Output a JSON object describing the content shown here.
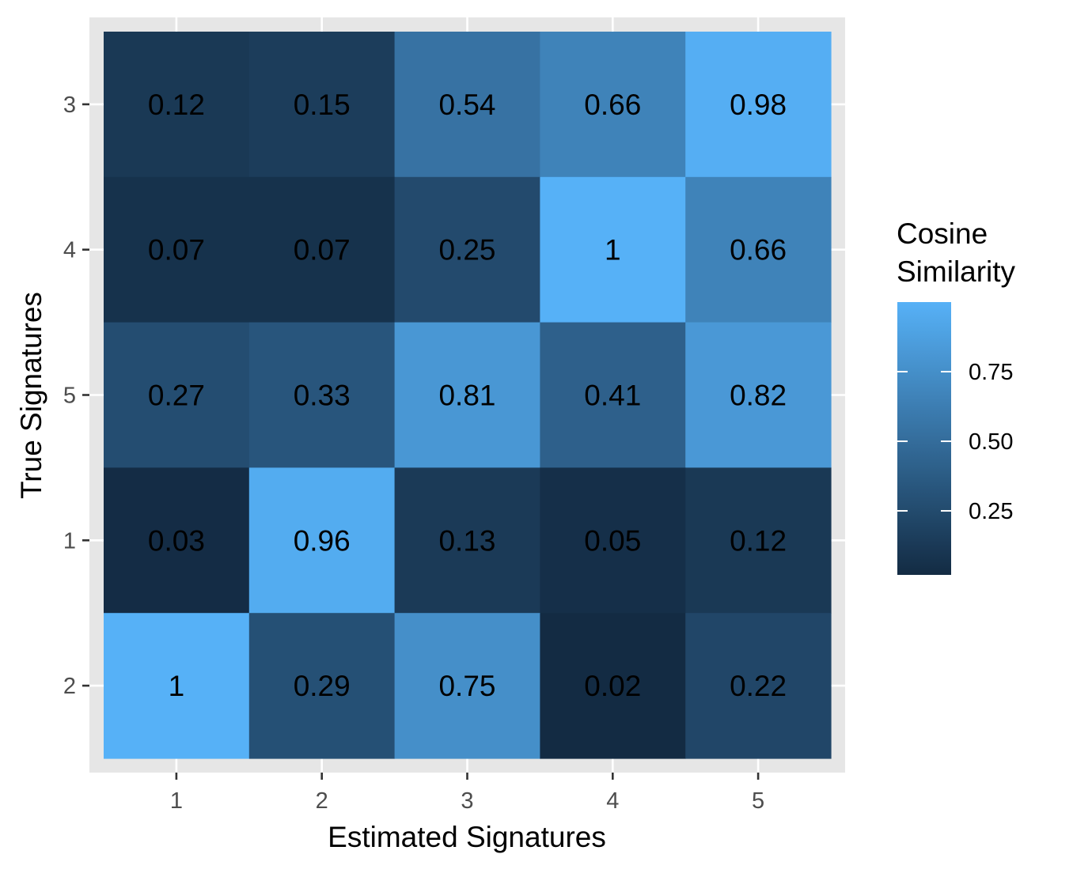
{
  "chart_data": {
    "type": "heatmap",
    "title": "",
    "xlabel": "Estimated Signatures",
    "ylabel": "True Signatures",
    "x_categories": [
      "1",
      "2",
      "3",
      "4",
      "5"
    ],
    "y_categories": [
      "3",
      "4",
      "5",
      "1",
      "2"
    ],
    "values": [
      [
        0.12,
        0.15,
        0.54,
        0.66,
        0.98
      ],
      [
        0.07,
        0.07,
        0.25,
        1,
        0.66
      ],
      [
        0.27,
        0.33,
        0.81,
        0.41,
        0.82
      ],
      [
        0.03,
        0.96,
        0.13,
        0.05,
        0.12
      ],
      [
        1,
        0.29,
        0.75,
        0.02,
        0.22
      ]
    ],
    "cell_labels": [
      [
        "0.12",
        "0.15",
        "0.54",
        "0.66",
        "0.98"
      ],
      [
        "0.07",
        "0.07",
        "0.25",
        "1",
        "0.66"
      ],
      [
        "0.27",
        "0.33",
        "0.81",
        "0.41",
        "0.82"
      ],
      [
        "0.03",
        "0.96",
        "0.13",
        "0.05",
        "0.12"
      ],
      [
        "1",
        "0.29",
        "0.75",
        "0.02",
        "0.22"
      ]
    ],
    "legend": {
      "title_lines": [
        "Cosine",
        "Similarity"
      ],
      "ticks": [
        0.25,
        0.5,
        0.75
      ],
      "tick_labels": [
        "0.25",
        "0.50",
        "0.75"
      ],
      "position": "right"
    },
    "color_scale": {
      "low": "#132B43",
      "high": "#56B1F7",
      "domain": [
        0.02,
        1
      ]
    },
    "panel_background": "#e6e6e6",
    "grid": true,
    "grid_color": "#ffffff"
  }
}
